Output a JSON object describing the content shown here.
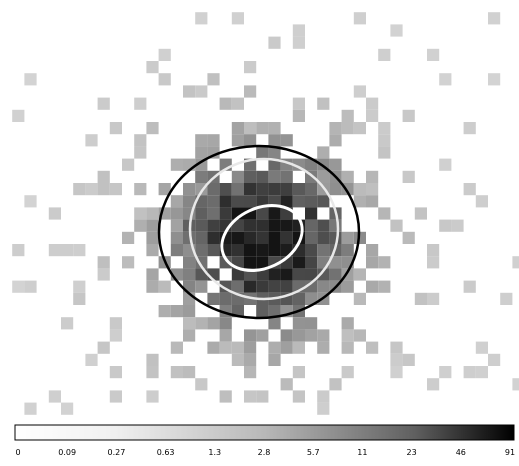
{
  "colorbar": {
    "labels": [
      "0",
      "0.09",
      "0.27",
      "0.63",
      "1.3",
      "2.8",
      "5.7",
      "11",
      "23",
      "46",
      "91"
    ]
  }
}
